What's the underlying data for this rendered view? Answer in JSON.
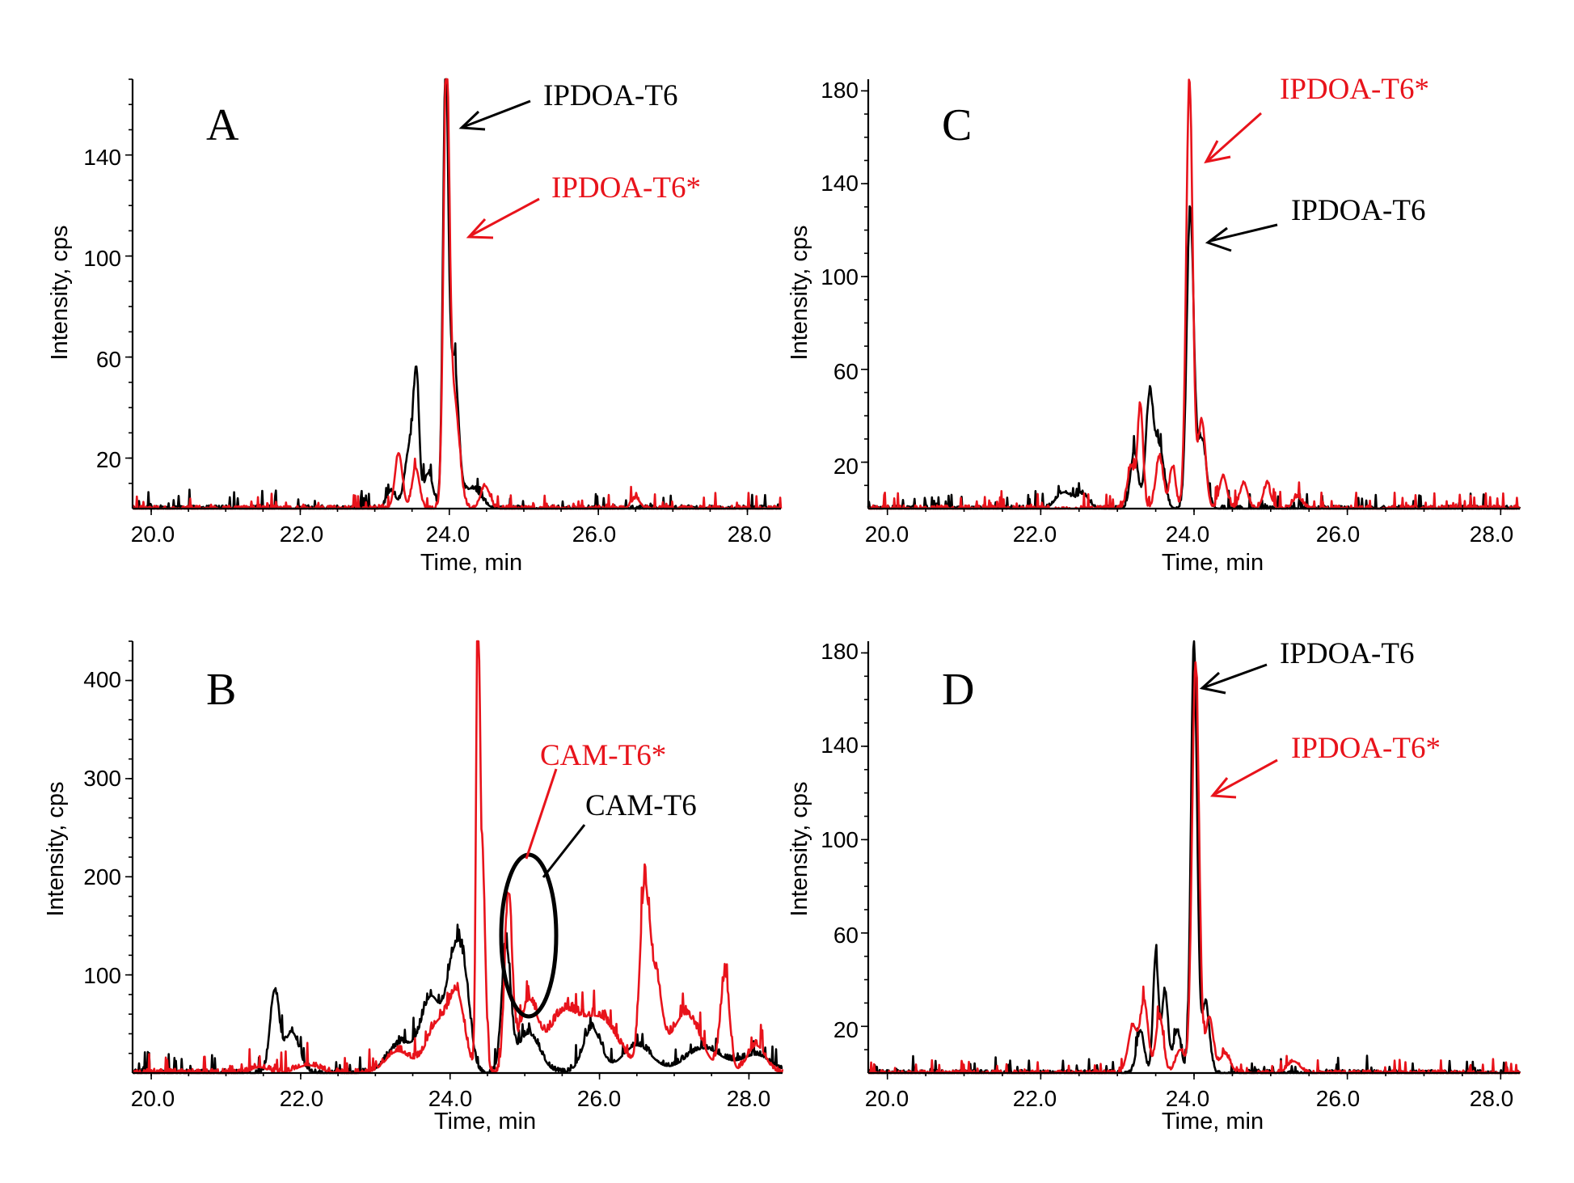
{
  "colors": {
    "black_trace": "#000000",
    "red_trace": "#e8131b"
  },
  "chart_data": [
    {
      "id": "A",
      "type": "line",
      "panel_label": "A",
      "xlabel": "Time, min",
      "ylabel": "Intensity, cps",
      "xlim": [
        19.75,
        28.45
      ],
      "ylim": [
        0,
        170
      ],
      "xticks": [
        "20.0",
        "22.0",
        "24.0",
        "26.0",
        "28.0"
      ],
      "yticks": [
        "20",
        "60",
        "100",
        "140"
      ],
      "series": [
        {
          "name": "IPDOA-T6",
          "color": "#000000",
          "noise": 3,
          "peaks": [
            [
              23.22,
              7,
              0.06
            ],
            [
              23.48,
              26,
              0.07
            ],
            [
              23.56,
              42,
              0.035
            ],
            [
              23.72,
              14,
              0.06
            ],
            [
              23.95,
              169,
              0.035
            ],
            [
              24.06,
              58,
              0.06
            ],
            [
              24.3,
              8,
              0.12
            ]
          ]
        },
        {
          "name": "IPDOA-T6*",
          "color": "#e8131b",
          "noise": 2.6,
          "peaks": [
            [
              23.32,
              22,
              0.05
            ],
            [
              23.55,
              16,
              0.05
            ],
            [
              23.96,
              168,
              0.038
            ],
            [
              24.06,
              45,
              0.07
            ],
            [
              24.48,
              9,
              0.06
            ],
            [
              26.5,
              4,
              0.06
            ]
          ]
        }
      ],
      "annotations": [
        {
          "text": "IPDOA-T6",
          "color": "#000000"
        },
        {
          "text": "IPDOA-T6*",
          "color": "#e8131b"
        }
      ]
    },
    {
      "id": "C",
      "type": "line",
      "panel_label": "C",
      "xlabel": "Time, min",
      "ylabel": "Intensity, cps",
      "xlim": [
        19.75,
        28.25
      ],
      "ylim": [
        0,
        185
      ],
      "xticks": [
        "20.0",
        "22.0",
        "24.0",
        "26.0",
        "28.0"
      ],
      "yticks": [
        "20",
        "60",
        "100",
        "140",
        "180"
      ],
      "series": [
        {
          "name": "IPDOA-T6",
          "color": "#000000",
          "noise": 3,
          "peaks": [
            [
              22.3,
              7,
              0.1
            ],
            [
              22.55,
              6,
              0.08
            ],
            [
              23.22,
              24,
              0.05
            ],
            [
              23.42,
              48,
              0.05
            ],
            [
              23.55,
              26,
              0.06
            ],
            [
              23.95,
              128,
              0.045
            ],
            [
              24.1,
              30,
              0.06
            ]
          ]
        },
        {
          "name": "IPDOA-T6*",
          "color": "#e8131b",
          "noise": 3.2,
          "peaks": [
            [
              23.3,
              44,
              0.035
            ],
            [
              23.18,
              18,
              0.05
            ],
            [
              23.55,
              22,
              0.05
            ],
            [
              23.72,
              18,
              0.04
            ],
            [
              23.94,
              184,
              0.042
            ],
            [
              24.1,
              38,
              0.05
            ],
            [
              24.38,
              14,
              0.05
            ],
            [
              24.65,
              11,
              0.05
            ],
            [
              24.95,
              10,
              0.05
            ],
            [
              25.35,
              5,
              0.06
            ]
          ]
        }
      ],
      "annotations": [
        {
          "text": "IPDOA-T6*",
          "color": "#e8131b"
        },
        {
          "text": "IPDOA-T6",
          "color": "#000000"
        }
      ]
    },
    {
      "id": "B",
      "type": "line",
      "panel_label": "B",
      "xlabel": "Time, min",
      "ylabel": "Intensity, cps",
      "xlim": [
        19.75,
        28.45
      ],
      "ylim": [
        0,
        440
      ],
      "xticks": [
        "20.0",
        "22.0",
        "24.0",
        "26.0",
        "28.0"
      ],
      "yticks": [
        "100",
        "200",
        "300",
        "400"
      ],
      "series": [
        {
          "name": "CAM-T6",
          "color": "#000000",
          "noise": 9,
          "peaks": [
            [
              21.65,
              82,
              0.06
            ],
            [
              21.88,
              42,
              0.1
            ],
            [
              23.35,
              30,
              0.18
            ],
            [
              23.75,
              75,
              0.13
            ],
            [
              24.05,
              110,
              0.1
            ],
            [
              24.2,
              72,
              0.08
            ],
            [
              24.75,
              125,
              0.06
            ],
            [
              25.05,
              40,
              0.15
            ],
            [
              25.9,
              45,
              0.12
            ],
            [
              26.5,
              28,
              0.2
            ],
            [
              27.4,
              25,
              0.25
            ],
            [
              28.1,
              18,
              0.2
            ]
          ]
        },
        {
          "name": "CAM-T6*",
          "color": "#e8131b",
          "noise": 10,
          "peaks": [
            [
              21.45,
              6,
              0.1
            ],
            [
              22.1,
              8,
              0.15
            ],
            [
              23.3,
              22,
              0.16
            ],
            [
              23.85,
              52,
              0.16
            ],
            [
              24.1,
              68,
              0.1
            ],
            [
              24.37,
              432,
              0.022
            ],
            [
              24.43,
              220,
              0.04
            ],
            [
              24.78,
              178,
              0.05
            ],
            [
              25.05,
              70,
              0.12
            ],
            [
              25.5,
              55,
              0.2
            ],
            [
              26.0,
              55,
              0.25
            ],
            [
              26.6,
              175,
              0.06
            ],
            [
              26.75,
              90,
              0.08
            ],
            [
              27.15,
              60,
              0.2
            ],
            [
              27.68,
              98,
              0.06
            ],
            [
              28.1,
              28,
              0.12
            ]
          ]
        }
      ],
      "annotations": [
        {
          "text": "CAM-T6*",
          "color": "#e8131b"
        },
        {
          "text": "CAM-T6",
          "color": "#000000"
        }
      ]
    },
    {
      "id": "D",
      "type": "line",
      "panel_label": "D",
      "xlabel": "Time, min",
      "ylabel": "Intensity, cps",
      "xlim": [
        19.75,
        28.25
      ],
      "ylim": [
        0,
        185
      ],
      "xticks": [
        "20.0",
        "22.0",
        "24.0",
        "26.0",
        "28.0"
      ],
      "yticks": [
        "20",
        "60",
        "100",
        "140",
        "180"
      ],
      "series": [
        {
          "name": "IPDOA-T6",
          "color": "#000000",
          "noise": 3,
          "peaks": [
            [
              23.3,
              18,
              0.05
            ],
            [
              23.5,
              50,
              0.035
            ],
            [
              23.62,
              35,
              0.04
            ],
            [
              23.78,
              18,
              0.05
            ],
            [
              24.0,
              182,
              0.04
            ],
            [
              24.15,
              30,
              0.05
            ]
          ]
        },
        {
          "name": "IPDOA-T6*",
          "color": "#e8131b",
          "noise": 2.6,
          "peaks": [
            [
              23.2,
              20,
              0.06
            ],
            [
              23.35,
              30,
              0.05
            ],
            [
              23.55,
              24,
              0.05
            ],
            [
              23.82,
              10,
              0.06
            ],
            [
              24.02,
              175,
              0.045
            ],
            [
              24.2,
              24,
              0.05
            ],
            [
              24.4,
              8,
              0.07
            ],
            [
              25.3,
              5,
              0.08
            ]
          ]
        }
      ],
      "annotations": [
        {
          "text": "IPDOA-T6",
          "color": "#000000"
        },
        {
          "text": "IPDOA-T6*",
          "color": "#e8131b"
        }
      ]
    }
  ]
}
